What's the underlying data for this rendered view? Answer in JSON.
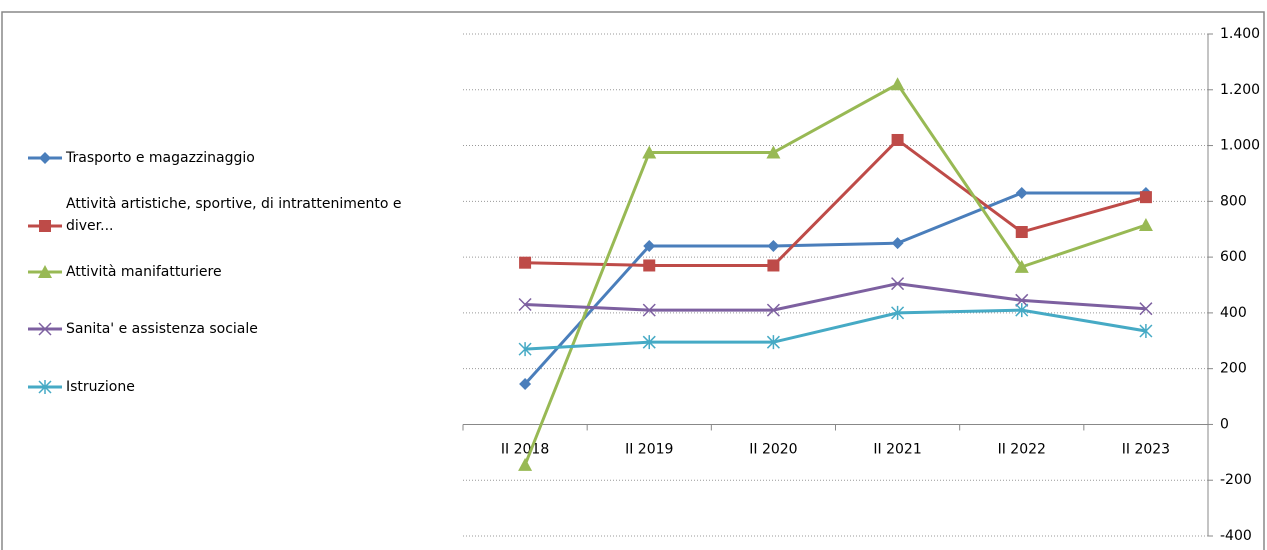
{
  "chart_data": {
    "type": "line",
    "categories": [
      "II 2018",
      "II 2019",
      "II 2020",
      "II 2021",
      "II 2022",
      "II 2023"
    ],
    "series": [
      {
        "name": "Trasporto e magazzinaggio",
        "color": "#4a7ebb",
        "marker": "diamond",
        "values": [
          145,
          640,
          640,
          650,
          830,
          830
        ]
      },
      {
        "name": "Attività artistiche, sportive, di intrattenimento e diver...",
        "color": "#be4b48",
        "marker": "square",
        "values": [
          580,
          570,
          570,
          1020,
          690,
          815
        ]
      },
      {
        "name": "Attività manifatturiere",
        "color": "#98b954",
        "marker": "triangle",
        "values": [
          -145,
          975,
          975,
          1220,
          565,
          715
        ]
      },
      {
        "name": "Sanita' e assistenza sociale",
        "color": "#7d60a0",
        "marker": "x",
        "values": [
          430,
          410,
          410,
          505,
          445,
          415
        ]
      },
      {
        "name": "Istruzione",
        "color": "#46aac5",
        "marker": "star",
        "values": [
          270,
          295,
          295,
          400,
          410,
          335
        ]
      }
    ],
    "ylim": [
      -400,
      1400
    ],
    "yticks": [
      -400,
      -200,
      0,
      200,
      400,
      600,
      800,
      {
        "value": 1000,
        "label": "1.000"
      },
      {
        "value": 1200,
        "label": "1.200"
      },
      {
        "value": 1400,
        "label": "1.400"
      }
    ],
    "grid": true,
    "legend": "left"
  }
}
